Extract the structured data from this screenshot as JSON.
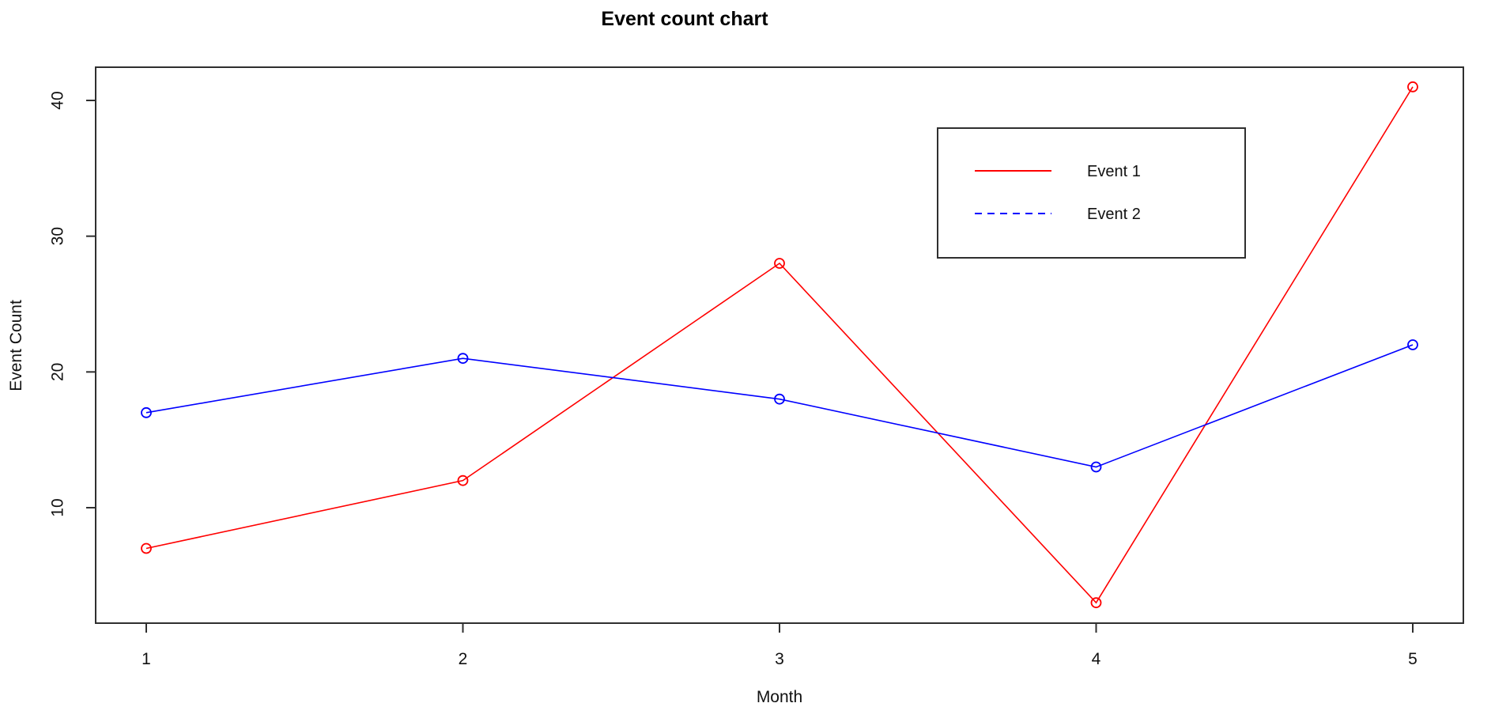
{
  "page": {
    "background_color": "#ffffff",
    "text_color": "#111111",
    "axis_color": "#2f2f2f"
  },
  "chart_data": {
    "type": "line",
    "title": "Event count chart",
    "xlabel": "Month",
    "ylabel": "Event Count",
    "x": [
      1,
      2,
      3,
      4,
      5
    ],
    "xticks": [
      "1",
      "2",
      "3",
      "4",
      "5"
    ],
    "yticks": [
      "10",
      "20",
      "30",
      "40"
    ],
    "ytick_values": [
      10,
      20,
      30,
      40
    ],
    "xlim": [
      1,
      5
    ],
    "ylim": [
      1.5,
      42.5
    ],
    "grid": false,
    "legend_position": "top-right",
    "series": [
      {
        "name": "Event 1",
        "color": "#ff0000",
        "plot_linestyle": "solid",
        "legend_linestyle": "solid",
        "marker": "open-circle",
        "values": [
          7,
          12,
          28,
          3,
          41
        ]
      },
      {
        "name": "Event 2",
        "color": "#0000ff",
        "plot_linestyle": "solid",
        "legend_linestyle": "dashed",
        "marker": "open-circle",
        "values": [
          17,
          21,
          18,
          13,
          22
        ]
      }
    ]
  }
}
